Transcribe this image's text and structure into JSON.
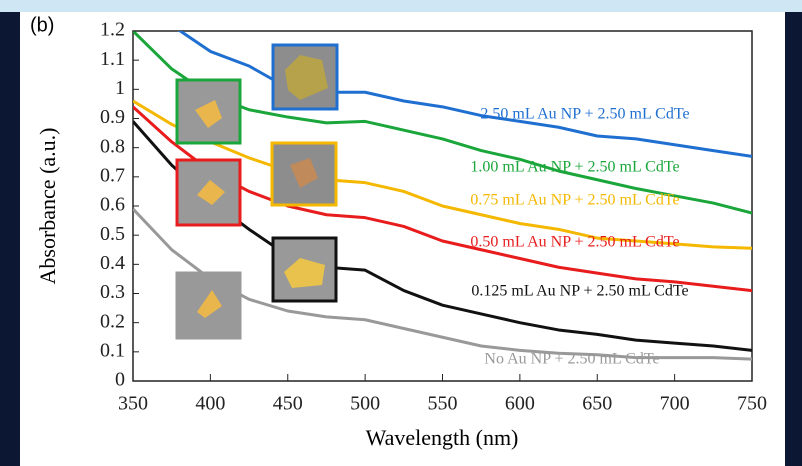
{
  "chart_data": {
    "type": "line",
    "panel_label": "(b)",
    "x_label": "Wavelength (nm)",
    "y_label": "Absorbance (a.u.)",
    "x": [
      350,
      375,
      400,
      425,
      450,
      475,
      500,
      525,
      550,
      575,
      600,
      625,
      650,
      675,
      700,
      725,
      750
    ],
    "series": [
      {
        "name": "2.50 mL Au NP + 2.50 mL CdTe",
        "color": "#1f6fd1",
        "values": [
          1.35,
          1.22,
          1.13,
          1.08,
          1.005,
          0.99,
          0.99,
          0.96,
          0.94,
          0.91,
          0.89,
          0.87,
          0.84,
          0.83,
          0.81,
          0.79,
          0.77
        ]
      },
      {
        "name": "1.00 mL Au NP + 2.50 mL CdTe",
        "color": "#1aa63a",
        "values": [
          1.2,
          1.07,
          0.98,
          0.93,
          0.905,
          0.885,
          0.89,
          0.86,
          0.83,
          0.79,
          0.76,
          0.72,
          0.69,
          0.66,
          0.635,
          0.61,
          0.576
        ]
      },
      {
        "name": "0.75 mL Au NP + 2.50 mL CdTe",
        "color": "#f5b800",
        "values": [
          0.96,
          0.88,
          0.82,
          0.765,
          0.72,
          0.69,
          0.68,
          0.65,
          0.6,
          0.57,
          0.54,
          0.52,
          0.49,
          0.48,
          0.47,
          0.46,
          0.455
        ]
      },
      {
        "name": "0.50 mL Au NP + 2.50 mL CdTe",
        "color": "#e81c1c",
        "values": [
          0.94,
          0.82,
          0.72,
          0.65,
          0.6,
          0.57,
          0.56,
          0.53,
          0.48,
          0.45,
          0.42,
          0.39,
          0.37,
          0.35,
          0.34,
          0.325,
          0.31
        ]
      },
      {
        "name": "0.125 mL Au NP + 2.50 mL CdTe",
        "color": "#111111",
        "values": [
          0.89,
          0.74,
          0.62,
          0.52,
          0.43,
          0.39,
          0.38,
          0.31,
          0.26,
          0.23,
          0.2,
          0.175,
          0.16,
          0.14,
          0.13,
          0.12,
          0.105
        ]
      },
      {
        "name": "No Au NP + 2.50 mL CdTe",
        "color": "#999999",
        "values": [
          0.59,
          0.45,
          0.35,
          0.28,
          0.24,
          0.22,
          0.21,
          0.18,
          0.15,
          0.12,
          0.105,
          0.095,
          0.09,
          0.08,
          0.08,
          0.08,
          0.075
        ]
      }
    ],
    "xlim": [
      350,
      750
    ],
    "xticks": [
      350,
      400,
      450,
      500,
      550,
      600,
      650,
      700,
      750
    ],
    "ylim": [
      0,
      1.2
    ],
    "yticks": [
      0,
      0.1,
      0.2,
      0.3,
      0.4,
      0.5,
      0.6,
      0.7,
      0.8,
      0.9,
      1,
      1.1,
      1.2
    ],
    "grid": false
  }
}
